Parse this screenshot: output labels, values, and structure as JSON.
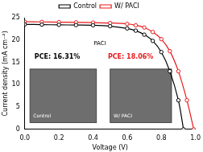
{
  "chart_data": {
    "type": "line",
    "x_label": "Voltage (V)",
    "y_label": "Current density (mA cm⁻²)",
    "series": [
      {
        "name": "Control",
        "color": "#000000",
        "marker": "circle",
        "x": [
          0,
          0.1,
          0.2,
          0.3,
          0.4,
          0.5,
          0.6,
          0.65,
          0.7,
          0.75,
          0.8,
          0.85,
          0.9,
          0.93
        ],
        "values": [
          23.5,
          23.45,
          23.4,
          23.35,
          23.3,
          23.1,
          22.6,
          22.1,
          21.2,
          19.8,
          17.3,
          13.0,
          6.5,
          0
        ]
      },
      {
        "name": "W/ PACI",
        "color": "#e8191b",
        "marker": "circle",
        "x": [
          0,
          0.1,
          0.2,
          0.3,
          0.4,
          0.5,
          0.6,
          0.65,
          0.7,
          0.75,
          0.8,
          0.85,
          0.9,
          0.95,
          0.99
        ],
        "values": [
          24.1,
          24.05,
          24.0,
          23.95,
          23.9,
          23.8,
          23.6,
          23.3,
          22.8,
          21.8,
          20.2,
          17.5,
          13.0,
          6.5,
          0
        ]
      }
    ],
    "xlim": [
      0,
      1.0
    ],
    "xticks": [
      {
        "value": 0,
        "label": "0.0"
      },
      {
        "value": 0.2,
        "label": "0.2"
      },
      {
        "value": 0.4,
        "label": "0.4"
      },
      {
        "value": 0.6,
        "label": "0.6"
      },
      {
        "value": 0.8,
        "label": "0.8"
      },
      {
        "value": 1.0,
        "label": "1.0"
      }
    ],
    "ylim": [
      0,
      25
    ],
    "yticks": [
      0,
      5,
      10,
      15,
      20,
      25
    ],
    "legend": "top",
    "grid": false,
    "annotations": [
      {
        "text": "PACI",
        "color": "#000000"
      },
      {
        "text": "PCE: 16.31%",
        "color": "#000000"
      },
      {
        "text": "PCE: 18.06%",
        "color": "#e8191b"
      },
      {
        "text": "Control",
        "color": "#ffffff"
      },
      {
        "text": "W/ PACI",
        "color": "#ffffff"
      }
    ]
  }
}
